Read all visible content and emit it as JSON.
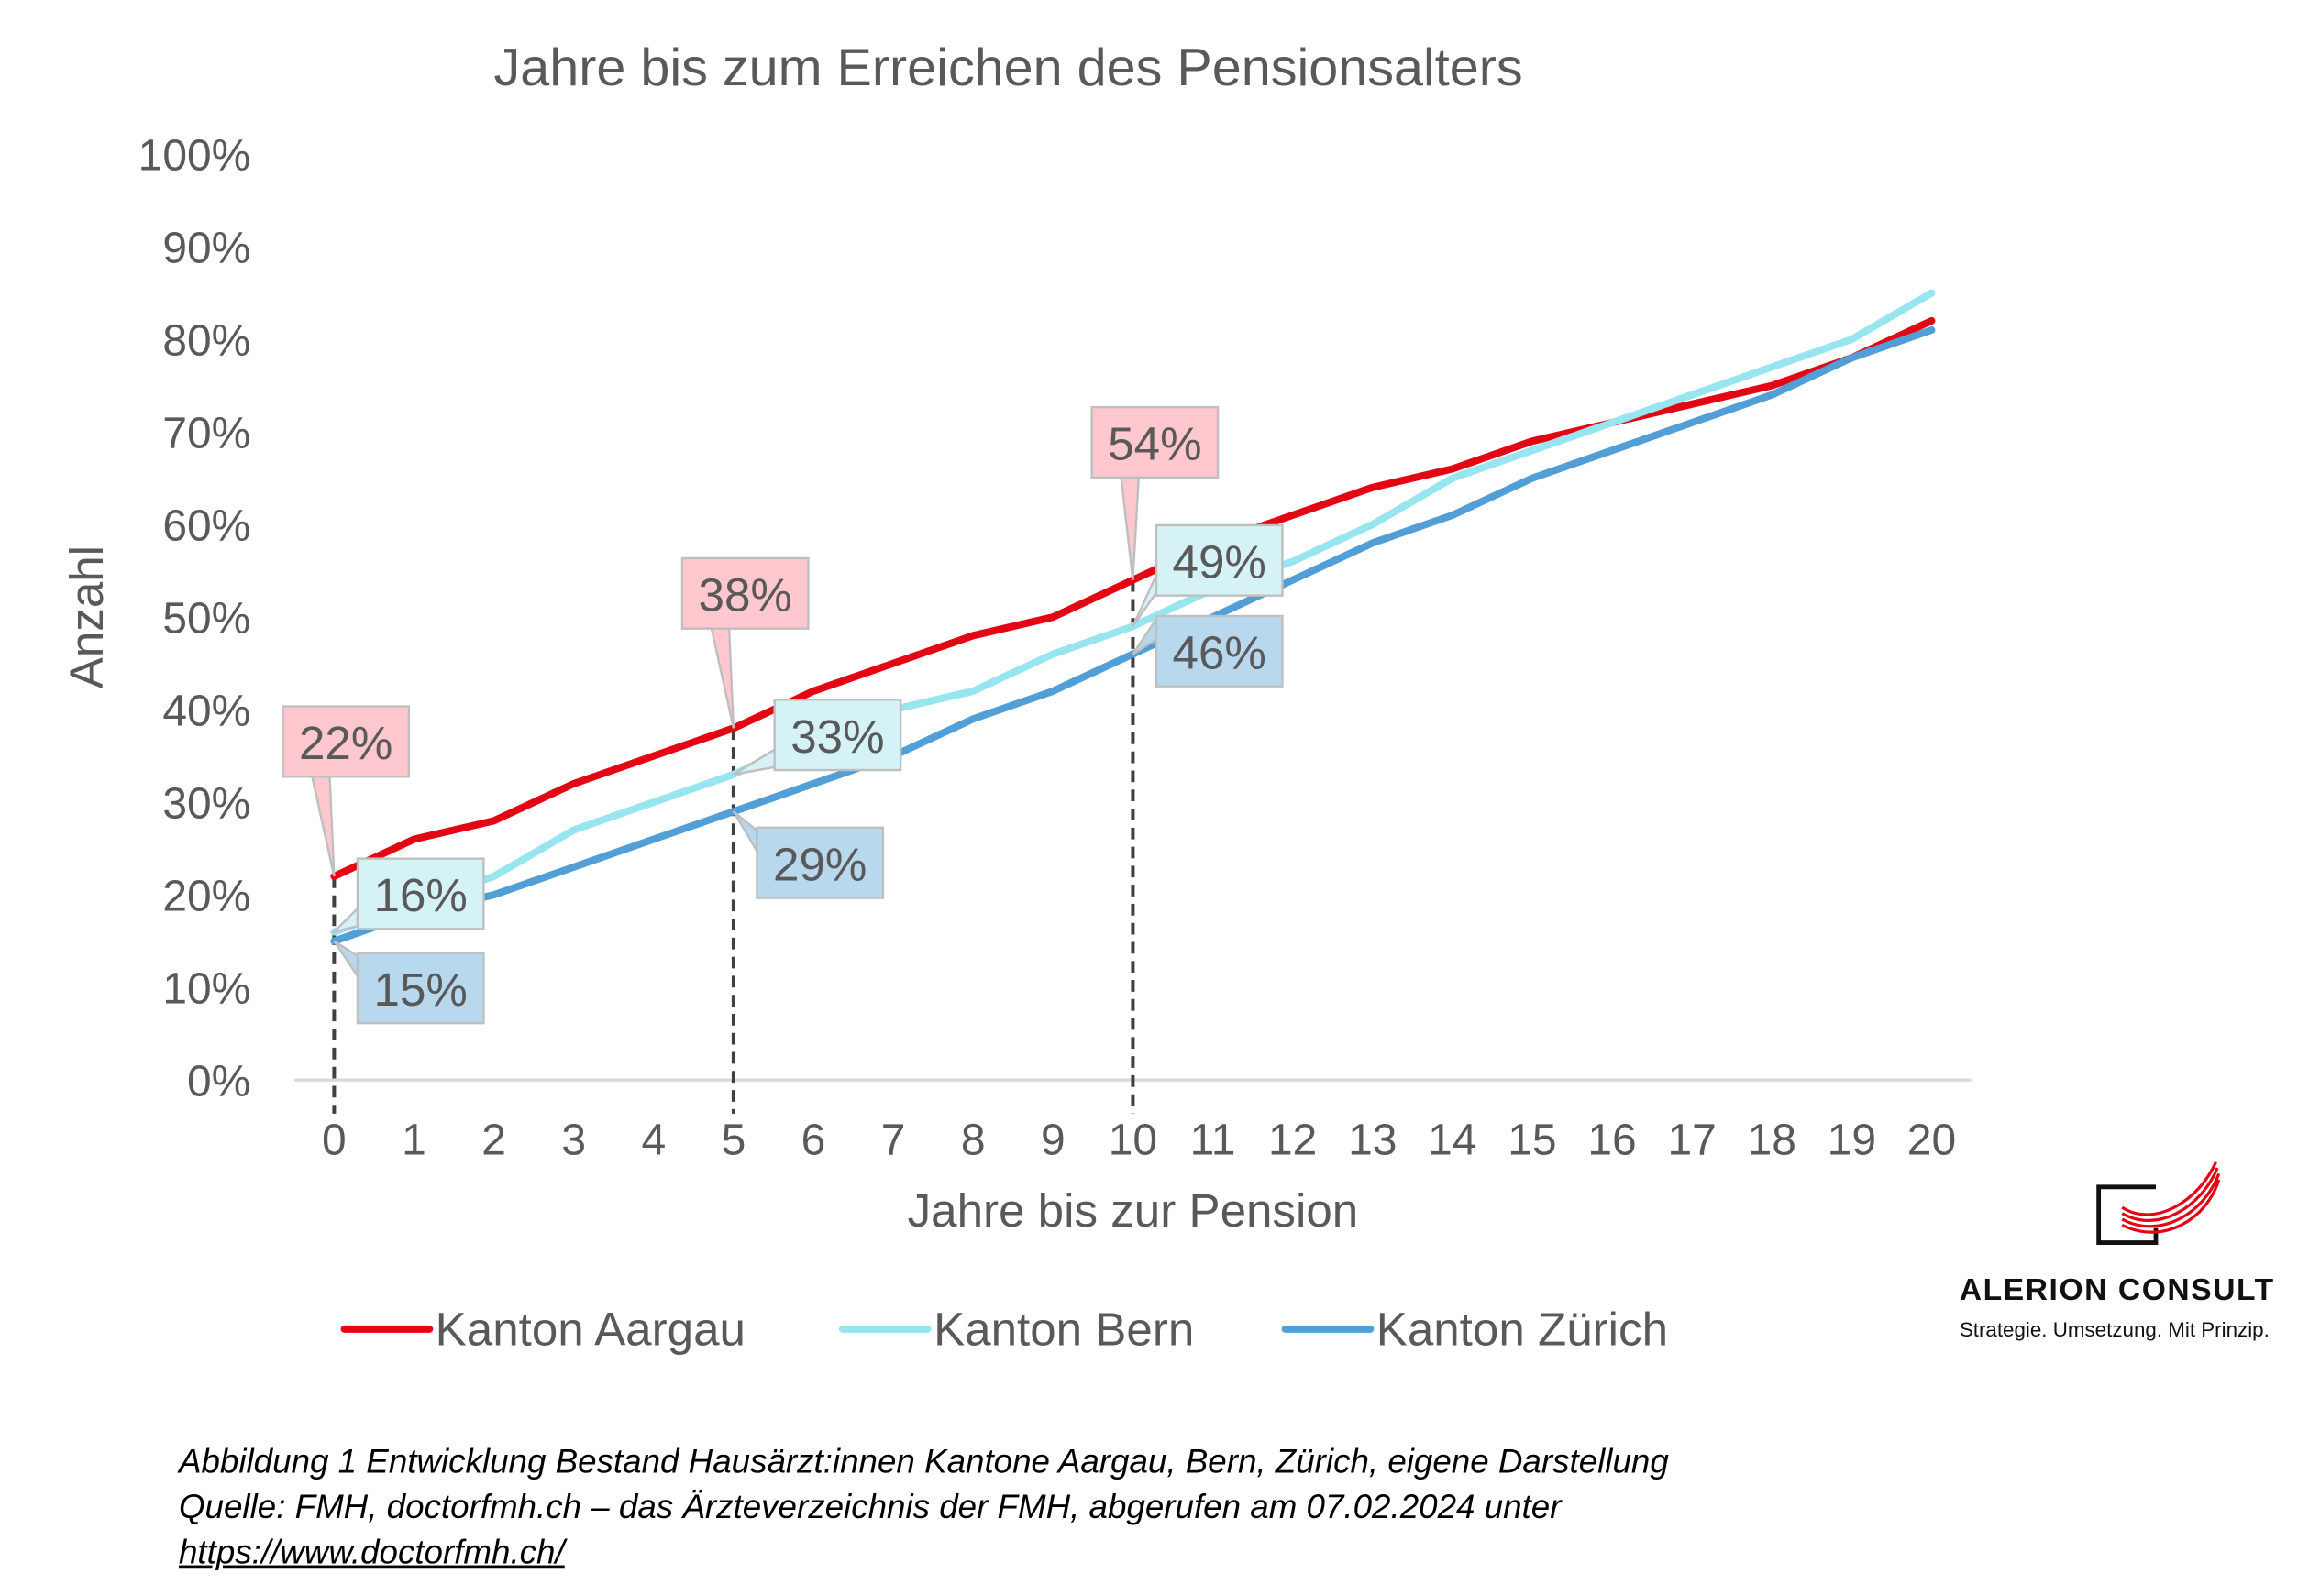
{
  "chart_data": {
    "type": "line",
    "title": "Jahre bis zum Erreichen des Pensionsalters",
    "xlabel": "Jahre bis zur Pension",
    "ylabel": "Anzahl",
    "x": [
      0,
      1,
      2,
      3,
      4,
      5,
      6,
      7,
      8,
      9,
      10,
      11,
      12,
      13,
      14,
      15,
      16,
      17,
      18,
      19,
      20
    ],
    "ylim": [
      0,
      100
    ],
    "yticks": [
      "0%",
      "10%",
      "20%",
      "30%",
      "40%",
      "50%",
      "60%",
      "70%",
      "80%",
      "90%",
      "100%"
    ],
    "grid": false,
    "legend_position": "bottom",
    "series": [
      {
        "name": "Kanton Aargau",
        "color": "#E30613",
        "values": [
          22,
          26,
          28,
          32,
          35,
          38,
          42,
          45,
          48,
          50,
          54,
          58,
          61,
          64,
          66,
          69,
          71,
          73,
          75,
          78,
          82
        ]
      },
      {
        "name": "Kanton Bern",
        "color": "#97E5EF",
        "values": [
          16,
          19,
          22,
          27,
          30,
          33,
          37,
          40,
          42,
          46,
          49,
          53,
          56,
          60,
          65,
          68,
          71,
          74,
          77,
          80,
          85
        ]
      },
      {
        "name": "Kanton Zürich",
        "color": "#529FD8",
        "values": [
          15,
          18,
          20,
          23,
          26,
          29,
          32,
          35,
          39,
          42,
          46,
          50,
          54,
          58,
          61,
          65,
          68,
          71,
          74,
          78,
          81
        ]
      }
    ],
    "reference_lines_x": [
      0,
      5,
      10
    ],
    "annotations": [
      {
        "series": 0,
        "x": 0,
        "text": "22%"
      },
      {
        "series": 1,
        "x": 0,
        "text": "16%"
      },
      {
        "series": 2,
        "x": 0,
        "text": "15%"
      },
      {
        "series": 0,
        "x": 5,
        "text": "38%"
      },
      {
        "series": 1,
        "x": 5,
        "text": "33%"
      },
      {
        "series": 2,
        "x": 5,
        "text": "29%"
      },
      {
        "series": 0,
        "x": 10,
        "text": "54%"
      },
      {
        "series": 1,
        "x": 10,
        "text": "49%"
      },
      {
        "series": 2,
        "x": 10,
        "text": "46%"
      }
    ]
  },
  "caption": {
    "line1": "Abbildung 1 Entwicklung Bestand Hausärzt:innen Kantone Aargau, Bern, Zürich, eigene Darstellung",
    "line2": "Quelle: FMH, doctorfmh.ch – das Ärzteverzeichnis der FMH, abgerufen am 07.02.2024 unter",
    "link": "https://www.doctorfmh.ch/"
  },
  "logo": {
    "name": "ALERION CONSULT",
    "tagline": "Strategie. Umsetzung. Mit Prinzip."
  }
}
